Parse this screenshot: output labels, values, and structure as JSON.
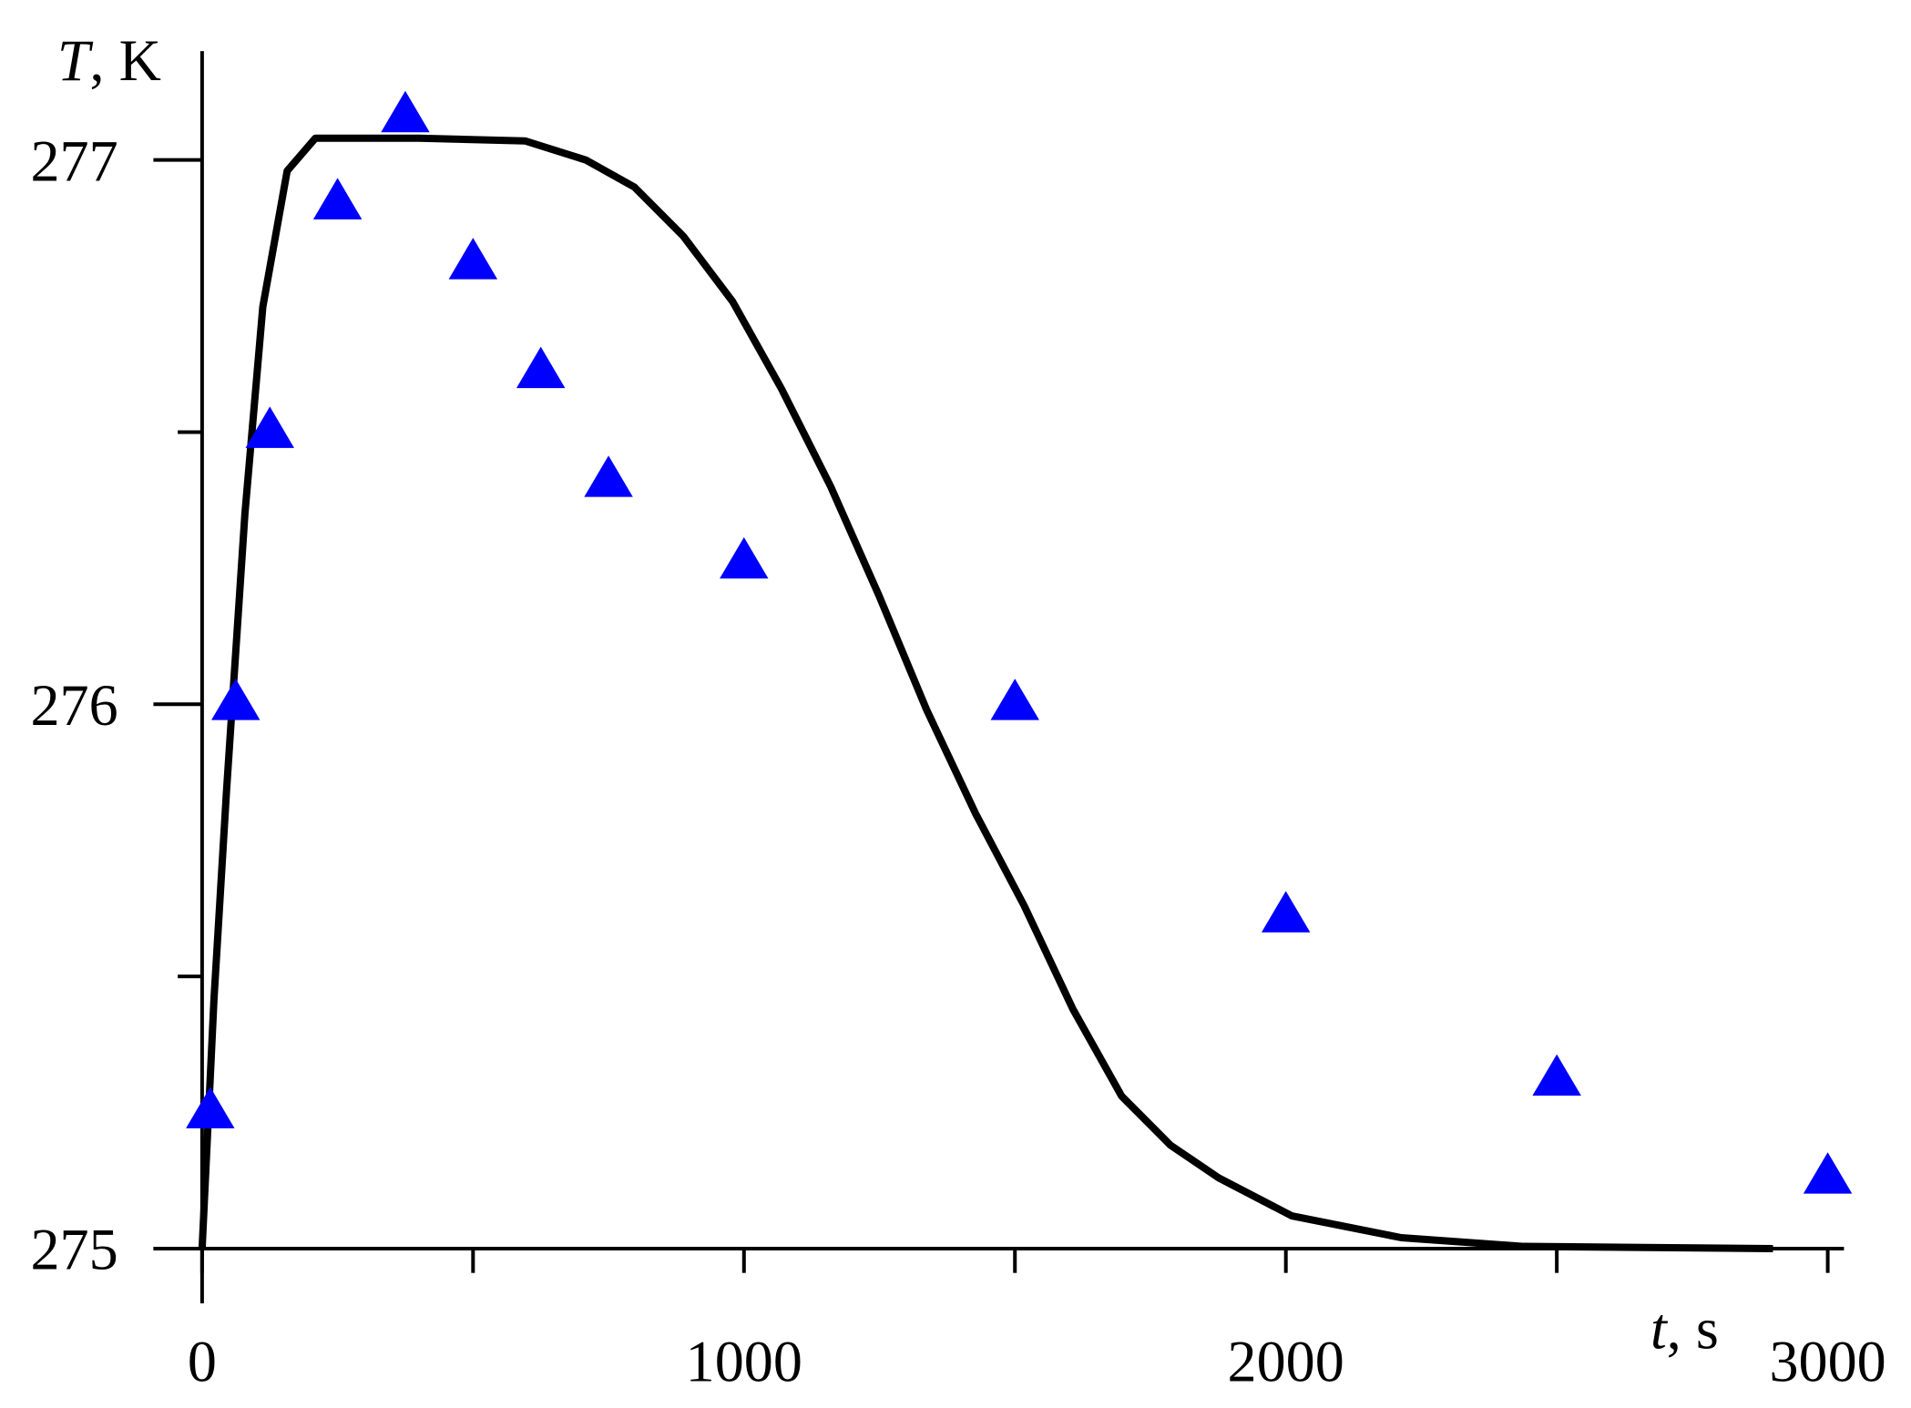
{
  "chart_data": {
    "type": "line",
    "x_label": "t, s",
    "y_label": "T, K",
    "xlim": [
      0,
      3030
    ],
    "ylim": [
      275,
      277.2
    ],
    "xticks": [
      0,
      1000,
      2000,
      3000
    ],
    "xminor": [
      500,
      1500,
      2500
    ],
    "yticks": [
      275,
      276,
      277
    ],
    "yminor": [
      275.5,
      276.5
    ],
    "grid": false,
    "series": [
      {
        "color": "#000000",
        "style": "line",
        "x": [
          0,
          22,
          45,
          79,
          112,
          157,
          209,
          400,
          596,
          708,
          798,
          888,
          979,
          1069,
          1160,
          1249,
          1337,
          1427,
          1517,
          1607,
          1697,
          1787,
          1876,
          2011,
          2213,
          2438,
          2899
        ],
        "values": [
          275,
          275.46,
          275.84,
          276.35,
          276.73,
          276.98,
          277.04,
          277.04,
          277.035,
          277.0,
          276.95,
          276.86,
          276.74,
          276.58,
          276.4,
          276.2,
          275.99,
          275.8,
          275.63,
          275.44,
          275.28,
          275.19,
          275.13,
          275.06,
          275.02,
          275.004,
          275.0
        ]
      },
      {
        "color": "#0000ff",
        "style": "marker",
        "marker": "triangle",
        "x": [
          15,
          62,
          125,
          250,
          375,
          500,
          625,
          750,
          1000,
          1500,
          2000,
          2500,
          3000
        ],
        "values": [
          275.25,
          276.0,
          276.5,
          276.92,
          277.08,
          276.81,
          276.61,
          276.41,
          276.26,
          276.0,
          275.61,
          275.31,
          275.13
        ]
      }
    ]
  }
}
